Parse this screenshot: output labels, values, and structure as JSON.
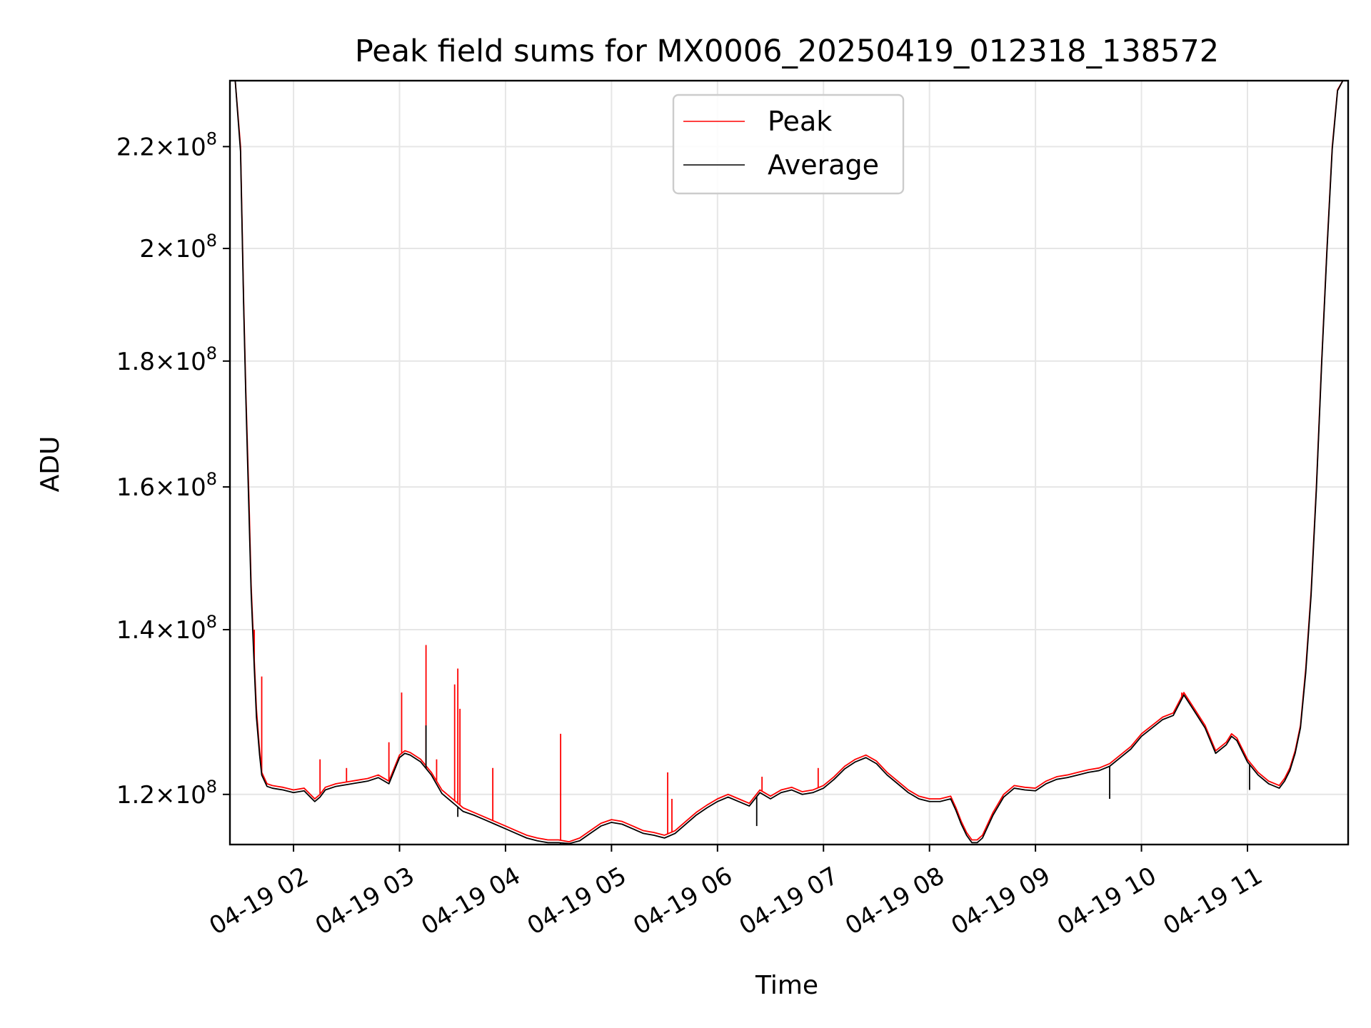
{
  "chart_data": {
    "type": "line",
    "title": "Peak field sums for MX0006_20250419_012318_138572",
    "xlabel": "Time",
    "ylabel": "ADU",
    "x_unit": "hours since 04-19 00:00",
    "xlim": [
      1.4,
      11.95
    ],
    "ylim": [
      114500000.0,
      234000000.0
    ],
    "y_scale": "log",
    "grid": true,
    "legend_position": "upper center",
    "x_ticks": [
      {
        "value": 2,
        "label": "04-19 02"
      },
      {
        "value": 3,
        "label": "04-19 03"
      },
      {
        "value": 4,
        "label": "04-19 04"
      },
      {
        "value": 5,
        "label": "04-19 05"
      },
      {
        "value": 6,
        "label": "04-19 06"
      },
      {
        "value": 7,
        "label": "04-19 07"
      },
      {
        "value": 8,
        "label": "04-19 08"
      },
      {
        "value": 9,
        "label": "04-19 09"
      },
      {
        "value": 10,
        "label": "04-19 10"
      },
      {
        "value": 11,
        "label": "04-19 11"
      }
    ],
    "y_ticks": [
      {
        "value": 120000000.0,
        "mantissa": "1.2",
        "base": "10",
        "exp": "8"
      },
      {
        "value": 140000000.0,
        "mantissa": "1.4",
        "base": "10",
        "exp": "8"
      },
      {
        "value": 160000000.0,
        "mantissa": "1.6",
        "base": "10",
        "exp": "8"
      },
      {
        "value": 180000000.0,
        "mantissa": "1.8",
        "base": "10",
        "exp": "8"
      },
      {
        "value": 200000000.0,
        "mantissa": "2",
        "base": "10",
        "exp": "8"
      },
      {
        "value": 220000000.0,
        "mantissa": "2.2",
        "base": "10",
        "exp": "8"
      }
    ],
    "series": [
      {
        "name": "Peak",
        "color": "#ff0000",
        "x": [
          1.4,
          1.45,
          1.5,
          1.53,
          1.55,
          1.58,
          1.6,
          1.63,
          1.65,
          1.68,
          1.7,
          1.75,
          1.8,
          1.85,
          1.9,
          2.0,
          2.1,
          2.2,
          2.25,
          2.3,
          2.4,
          2.5,
          2.6,
          2.7,
          2.8,
          2.9,
          3.0,
          3.05,
          3.1,
          3.2,
          3.3,
          3.4,
          3.5,
          3.6,
          3.7,
          3.8,
          3.9,
          4.0,
          4.1,
          4.2,
          4.3,
          4.4,
          4.5,
          4.6,
          4.7,
          4.8,
          4.9,
          5.0,
          5.1,
          5.2,
          5.3,
          5.4,
          5.5,
          5.6,
          5.7,
          5.8,
          5.9,
          6.0,
          6.1,
          6.2,
          6.3,
          6.4,
          6.5,
          6.6,
          6.7,
          6.8,
          6.9,
          7.0,
          7.1,
          7.2,
          7.3,
          7.4,
          7.5,
          7.6,
          7.7,
          7.8,
          7.9,
          8.0,
          8.1,
          8.2,
          8.25,
          8.3,
          8.35,
          8.4,
          8.45,
          8.5,
          8.6,
          8.7,
          8.8,
          8.9,
          9.0,
          9.1,
          9.2,
          9.3,
          9.4,
          9.5,
          9.6,
          9.7,
          9.8,
          9.9,
          10.0,
          10.1,
          10.2,
          10.3,
          10.4,
          10.45,
          10.5,
          10.6,
          10.7,
          10.8,
          10.85,
          10.9,
          11.0,
          11.1,
          11.2,
          11.3,
          11.35,
          11.4,
          11.45,
          11.5,
          11.55,
          11.6,
          11.65,
          11.7,
          11.75,
          11.8,
          11.85,
          11.9,
          11.95
        ],
        "values": [
          234000000.0,
          234000000.0,
          220000000.0,
          190000000.0,
          175000000.0,
          158000000.0,
          146000000.0,
          136000000.0,
          130000000.0,
          125000000.0,
          122500000.0,
          121200000.0,
          121000000.0,
          120900000.0,
          120800000.0,
          120500000.0,
          120700000.0,
          119500000.0,
          120000000.0,
          120800000.0,
          121200000.0,
          121400000.0,
          121600000.0,
          121800000.0,
          122200000.0,
          121500000.0,
          124500000.0,
          125000000.0,
          124800000.0,
          124000000.0,
          122500000.0,
          120500000.0,
          119500000.0,
          118500000.0,
          118000000.0,
          117500000.0,
          117000000.0,
          116500000.0,
          116000000.0,
          115500000.0,
          115200000.0,
          115000000.0,
          115000000.0,
          114800000.0,
          115200000.0,
          116000000.0,
          116800000.0,
          117200000.0,
          117000000.0,
          116500000.0,
          116000000.0,
          115800000.0,
          115500000.0,
          116000000.0,
          117000000.0,
          118000000.0,
          118800000.0,
          119500000.0,
          120000000.0,
          119500000.0,
          119000000.0,
          120500000.0,
          119800000.0,
          120500000.0,
          120800000.0,
          120300000.0,
          120500000.0,
          121000000.0,
          122000000.0,
          123200000.0,
          124000000.0,
          124500000.0,
          123800000.0,
          122500000.0,
          121500000.0,
          120500000.0,
          119800000.0,
          119500000.0,
          119500000.0,
          119800000.0,
          118500000.0,
          117000000.0,
          115800000.0,
          115000000.0,
          115000000.0,
          115500000.0,
          118000000.0,
          120000000.0,
          121000000.0,
          120800000.0,
          120700000.0,
          121500000.0,
          122000000.0,
          122200000.0,
          122500000.0,
          122800000.0,
          123000000.0,
          123500000.0,
          124500000.0,
          125500000.0,
          127000000.0,
          128000000.0,
          129000000.0,
          129500000.0,
          132000000.0,
          131000000.0,
          130000000.0,
          128000000.0,
          125000000.0,
          126000000.0,
          127000000.0,
          126500000.0,
          124000000.0,
          122500000.0,
          121500000.0,
          121000000.0,
          121800000.0,
          123000000.0,
          125000000.0,
          128000000.0,
          135000000.0,
          145000000.0,
          160000000.0,
          180000000.0,
          200000000.0,
          220000000.0,
          232000000.0,
          234000000.0,
          234000000.0
        ],
        "spikes": [
          {
            "x": 1.63,
            "value": 140000000.0
          },
          {
            "x": 1.7,
            "value": 134000000.0
          },
          {
            "x": 2.25,
            "value": 124000000.0
          },
          {
            "x": 2.5,
            "value": 123000000.0
          },
          {
            "x": 2.9,
            "value": 126000000.0
          },
          {
            "x": 3.02,
            "value": 132000000.0
          },
          {
            "x": 3.25,
            "value": 138000000.0
          },
          {
            "x": 3.35,
            "value": 124000000.0
          },
          {
            "x": 3.52,
            "value": 133000000.0
          },
          {
            "x": 3.55,
            "value": 135000000.0
          },
          {
            "x": 3.57,
            "value": 130000000.0
          },
          {
            "x": 3.88,
            "value": 123000000.0
          },
          {
            "x": 4.52,
            "value": 127000000.0
          },
          {
            "x": 5.53,
            "value": 122500000.0
          },
          {
            "x": 5.57,
            "value": 119500000.0
          },
          {
            "x": 6.42,
            "value": 122000000.0
          },
          {
            "x": 6.95,
            "value": 123000000.0
          },
          {
            "x": 7.4,
            "value": 124500000.0
          },
          {
            "x": 10.38,
            "value": 132000000.0
          }
        ]
      },
      {
        "name": "Average",
        "color": "#000000",
        "x": [
          1.4,
          1.45,
          1.5,
          1.53,
          1.55,
          1.58,
          1.6,
          1.63,
          1.65,
          1.68,
          1.7,
          1.75,
          1.8,
          1.85,
          1.9,
          2.0,
          2.1,
          2.2,
          2.25,
          2.3,
          2.4,
          2.5,
          2.6,
          2.7,
          2.8,
          2.9,
          3.0,
          3.05,
          3.1,
          3.2,
          3.3,
          3.4,
          3.5,
          3.6,
          3.7,
          3.8,
          3.9,
          4.0,
          4.1,
          4.2,
          4.3,
          4.4,
          4.5,
          4.6,
          4.7,
          4.8,
          4.9,
          5.0,
          5.1,
          5.2,
          5.3,
          5.4,
          5.5,
          5.6,
          5.7,
          5.8,
          5.9,
          6.0,
          6.1,
          6.2,
          6.3,
          6.4,
          6.5,
          6.6,
          6.7,
          6.8,
          6.9,
          7.0,
          7.1,
          7.2,
          7.3,
          7.4,
          7.5,
          7.6,
          7.7,
          7.8,
          7.9,
          8.0,
          8.1,
          8.2,
          8.25,
          8.3,
          8.35,
          8.4,
          8.45,
          8.5,
          8.6,
          8.7,
          8.8,
          8.9,
          9.0,
          9.1,
          9.2,
          9.3,
          9.4,
          9.5,
          9.6,
          9.7,
          9.8,
          9.9,
          10.0,
          10.1,
          10.2,
          10.3,
          10.4,
          10.45,
          10.5,
          10.6,
          10.7,
          10.8,
          10.85,
          10.9,
          11.0,
          11.1,
          11.2,
          11.3,
          11.35,
          11.4,
          11.45,
          11.5,
          11.55,
          11.6,
          11.65,
          11.7,
          11.75,
          11.8,
          11.85,
          11.9,
          11.95
        ],
        "values": [
          234000000.0,
          234000000.0,
          219000000.0,
          189000000.0,
          174000000.0,
          156000000.0,
          145000000.0,
          135000000.0,
          129000000.0,
          124500000.0,
          122200000.0,
          120900000.0,
          120700000.0,
          120600000.0,
          120500000.0,
          120200000.0,
          120400000.0,
          119200000.0,
          119700000.0,
          120500000.0,
          120900000.0,
          121100000.0,
          121300000.0,
          121500000.0,
          121900000.0,
          121200000.0,
          124200000.0,
          124700000.0,
          124500000.0,
          123700000.0,
          122200000.0,
          120100000.0,
          119100000.0,
          118100000.0,
          117700000.0,
          117200000.0,
          116700000.0,
          116200000.0,
          115700000.0,
          115200000.0,
          114900000.0,
          114700000.0,
          114700000.0,
          114600000.0,
          114900000.0,
          115700000.0,
          116500000.0,
          116900000.0,
          116700000.0,
          116200000.0,
          115700000.0,
          115500000.0,
          115200000.0,
          115700000.0,
          116700000.0,
          117700000.0,
          118500000.0,
          119200000.0,
          119700000.0,
          119200000.0,
          118700000.0,
          120200000.0,
          119500000.0,
          120200000.0,
          120500000.0,
          120000000.0,
          120200000.0,
          120700000.0,
          121700000.0,
          122900000.0,
          123700000.0,
          124200000.0,
          123500000.0,
          122200000.0,
          121200000.0,
          120200000.0,
          119500000.0,
          119200000.0,
          119200000.0,
          119500000.0,
          118200000.0,
          116700000.0,
          115500000.0,
          114700000.0,
          114700000.0,
          115200000.0,
          117700000.0,
          119700000.0,
          120700000.0,
          120500000.0,
          120400000.0,
          121200000.0,
          121700000.0,
          121900000.0,
          122200000.0,
          122500000.0,
          122700000.0,
          123200000.0,
          124200000.0,
          125200000.0,
          126700000.0,
          127700000.0,
          128700000.0,
          129200000.0,
          131700000.0,
          130700000.0,
          129700000.0,
          127700000.0,
          124700000.0,
          125700000.0,
          126700000.0,
          126200000.0,
          123700000.0,
          122200000.0,
          121200000.0,
          120700000.0,
          121500000.0,
          122700000.0,
          124700000.0,
          127700000.0,
          134500000.0,
          144500000.0,
          159500000.0,
          179500000.0,
          199500000.0,
          219500000.0,
          231800000.0,
          234000000.0,
          234000000.0
        ],
        "spikes": [
          {
            "x": 3.25,
            "value": 128000000.0
          },
          {
            "x": 3.55,
            "value": 117500000.0
          },
          {
            "x": 4.52,
            "value": 114500000.0
          },
          {
            "x": 6.37,
            "value": 116500000.0
          },
          {
            "x": 9.7,
            "value": 119500000.0
          },
          {
            "x": 11.02,
            "value": 120500000.0
          }
        ]
      }
    ]
  }
}
